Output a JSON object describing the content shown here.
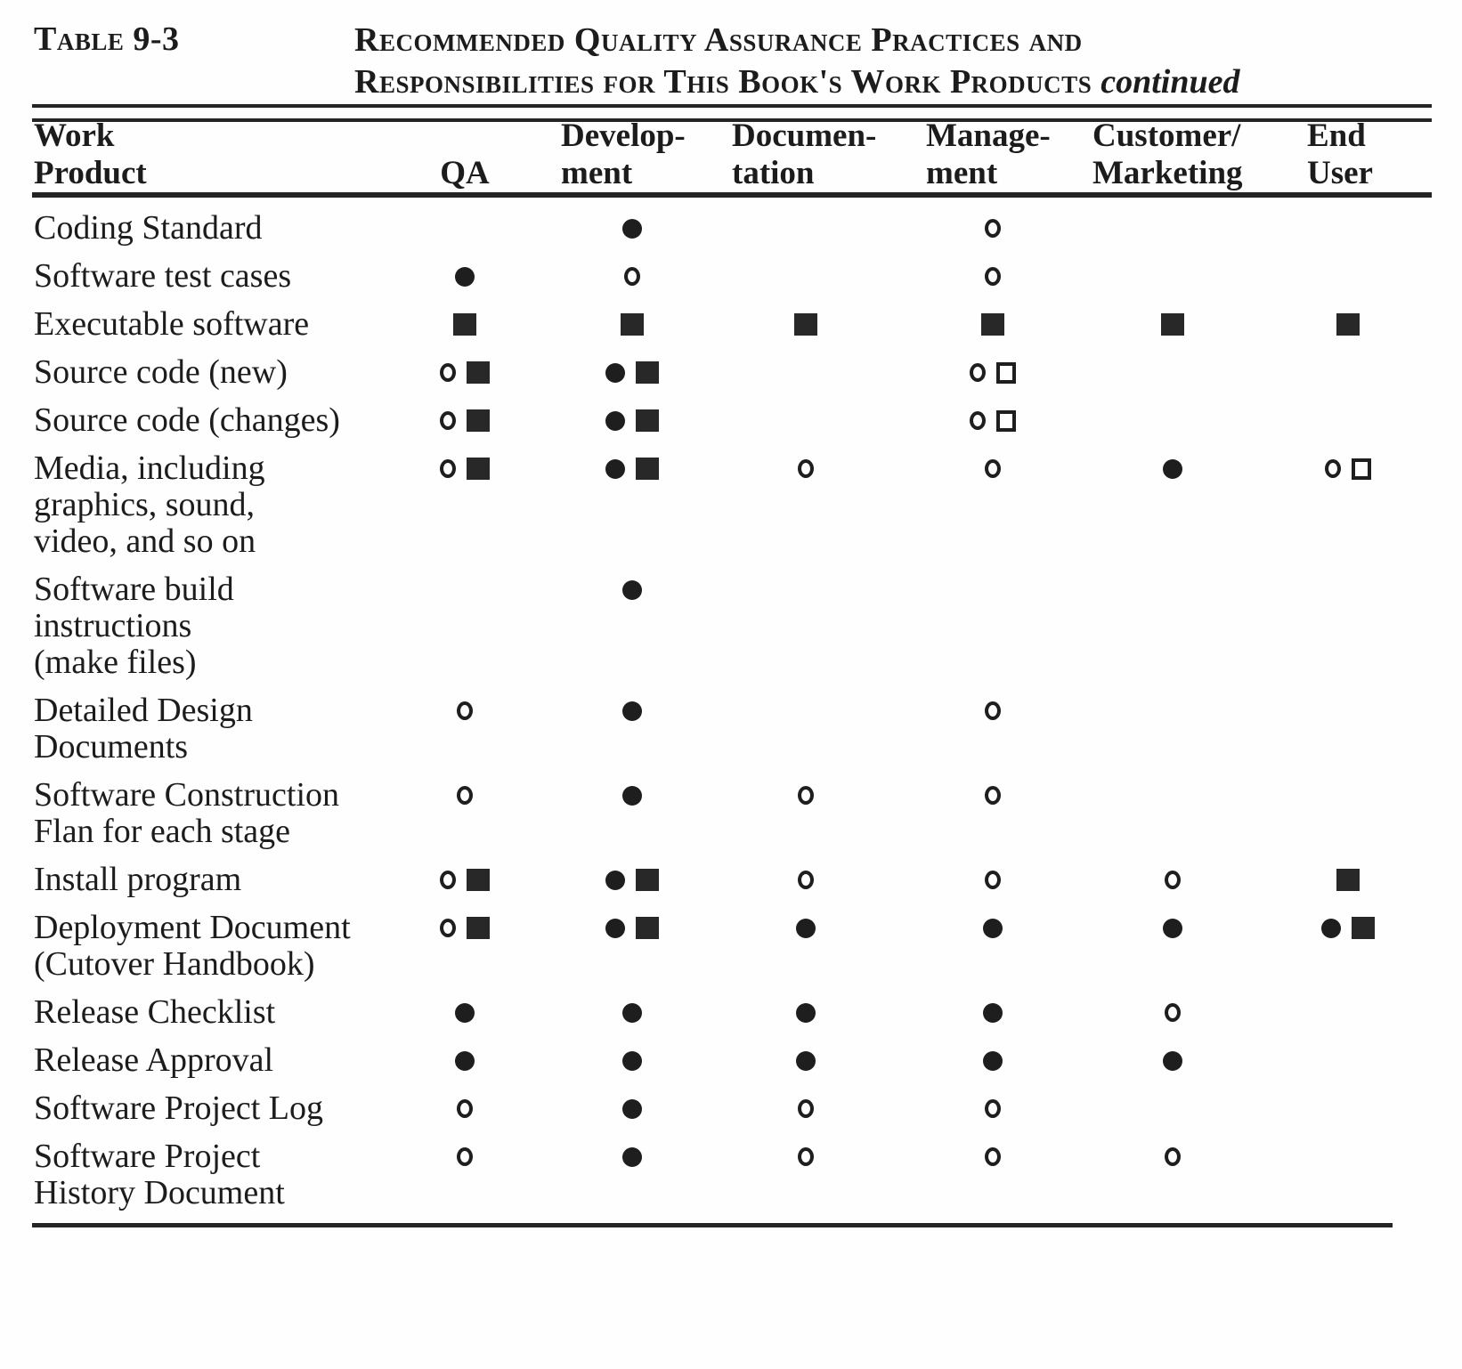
{
  "page": {
    "label": "Table 9-3",
    "title_line1": "Recommended Quality Assurance Practices and",
    "title_line2": "Responsibilities for This Book's Work Products",
    "title_suffix": "continued"
  },
  "table": {
    "columns": [
      {
        "id": "work_product",
        "line1": "Work",
        "line2": "Product"
      },
      {
        "id": "qa",
        "line1": "",
        "line2": "QA"
      },
      {
        "id": "development",
        "line1": "Develop-",
        "line2": "ment"
      },
      {
        "id": "documentation",
        "line1": "Documen-",
        "line2": "tation"
      },
      {
        "id": "management",
        "line1": "Manage-",
        "line2": "ment"
      },
      {
        "id": "customer_marketing",
        "line1": "Customer/",
        "line2": "Marketing"
      },
      {
        "id": "end_user",
        "line1": "End",
        "line2": "User"
      }
    ],
    "symbol_legend": {
      "filled-circle": "●",
      "open-circle": "○",
      "filled-square": "■",
      "open-square": "□"
    },
    "rows": [
      {
        "name_lines": [
          "Coding Standard"
        ],
        "cells": [
          [],
          [
            "filled-circle"
          ],
          [],
          [
            "open-circle"
          ],
          [],
          []
        ]
      },
      {
        "name_lines": [
          "Software test cases"
        ],
        "cells": [
          [
            "filled-circle"
          ],
          [
            "open-circle"
          ],
          [],
          [
            "open-circle"
          ],
          [],
          []
        ]
      },
      {
        "name_lines": [
          "Executable software"
        ],
        "cells": [
          [
            "filled-square"
          ],
          [
            "filled-square"
          ],
          [
            "filled-square"
          ],
          [
            "filled-square"
          ],
          [
            "filled-square"
          ],
          [
            "filled-square"
          ]
        ]
      },
      {
        "name_lines": [
          "Source code (new)"
        ],
        "cells": [
          [
            "open-circle",
            "filled-square"
          ],
          [
            "filled-circle",
            "filled-square"
          ],
          [],
          [
            "open-circle",
            "open-square"
          ],
          [],
          []
        ]
      },
      {
        "name_lines": [
          "Source code (changes)"
        ],
        "cells": [
          [
            "open-circle",
            "filled-square"
          ],
          [
            "filled-circle",
            "filled-square"
          ],
          [],
          [
            "open-circle",
            "open-square"
          ],
          [],
          []
        ]
      },
      {
        "name_lines": [
          "Media, including",
          "graphics, sound,",
          "video, and so on"
        ],
        "cells": [
          [
            "open-circle",
            "filled-square"
          ],
          [
            "filled-circle",
            "filled-square"
          ],
          [
            "open-circle"
          ],
          [
            "open-circle"
          ],
          [
            "filled-circle"
          ],
          [
            "open-circle",
            "open-square"
          ]
        ]
      },
      {
        "name_lines": [
          "Software build",
          "instructions",
          "(make files)"
        ],
        "cells": [
          [],
          [
            "filled-circle"
          ],
          [],
          [],
          [],
          []
        ]
      },
      {
        "name_lines": [
          "Detailed Design",
          "Documents"
        ],
        "cells": [
          [
            "open-circle"
          ],
          [
            "filled-circle"
          ],
          [],
          [
            "open-circle"
          ],
          [],
          []
        ]
      },
      {
        "name_lines": [
          "Software Construction",
          "Flan for each stage"
        ],
        "cells": [
          [
            "open-circle"
          ],
          [
            "filled-circle"
          ],
          [
            "open-circle"
          ],
          [
            "open-circle"
          ],
          [],
          []
        ]
      },
      {
        "name_lines": [
          "Install program"
        ],
        "cells": [
          [
            "open-circle",
            "filled-square"
          ],
          [
            "filled-circle",
            "filled-square"
          ],
          [
            "open-circle"
          ],
          [
            "open-circle"
          ],
          [
            "open-circle"
          ],
          [
            "filled-square"
          ]
        ]
      },
      {
        "name_lines": [
          "Deployment Document",
          "(Cutover Handbook)"
        ],
        "cells": [
          [
            "open-circle",
            "filled-square"
          ],
          [
            "filled-circle",
            "filled-square"
          ],
          [
            "filled-circle"
          ],
          [
            "filled-circle"
          ],
          [
            "filled-circle"
          ],
          [
            "filled-circle",
            "filled-square"
          ]
        ]
      },
      {
        "name_lines": [
          "Release Checklist"
        ],
        "cells": [
          [
            "filled-circle"
          ],
          [
            "filled-circle"
          ],
          [
            "filled-circle"
          ],
          [
            "filled-circle"
          ],
          [
            "open-circle"
          ],
          []
        ]
      },
      {
        "name_lines": [
          "Release Approval"
        ],
        "cells": [
          [
            "filled-circle"
          ],
          [
            "filled-circle"
          ],
          [
            "filled-circle"
          ],
          [
            "filled-circle"
          ],
          [
            "filled-circle"
          ],
          []
        ]
      },
      {
        "name_lines": [
          "Software Project Log"
        ],
        "cells": [
          [
            "open-circle"
          ],
          [
            "filled-circle"
          ],
          [
            "open-circle"
          ],
          [
            "open-circle"
          ],
          [],
          []
        ]
      },
      {
        "name_lines": [
          "Software Project",
          "History Document"
        ],
        "cells": [
          [
            "open-circle"
          ],
          [
            "filled-circle"
          ],
          [
            "open-circle"
          ],
          [
            "open-circle"
          ],
          [
            "open-circle"
          ],
          []
        ]
      }
    ]
  },
  "colors": {
    "ink": "#1c1c1c",
    "paper": "#fefefe"
  }
}
